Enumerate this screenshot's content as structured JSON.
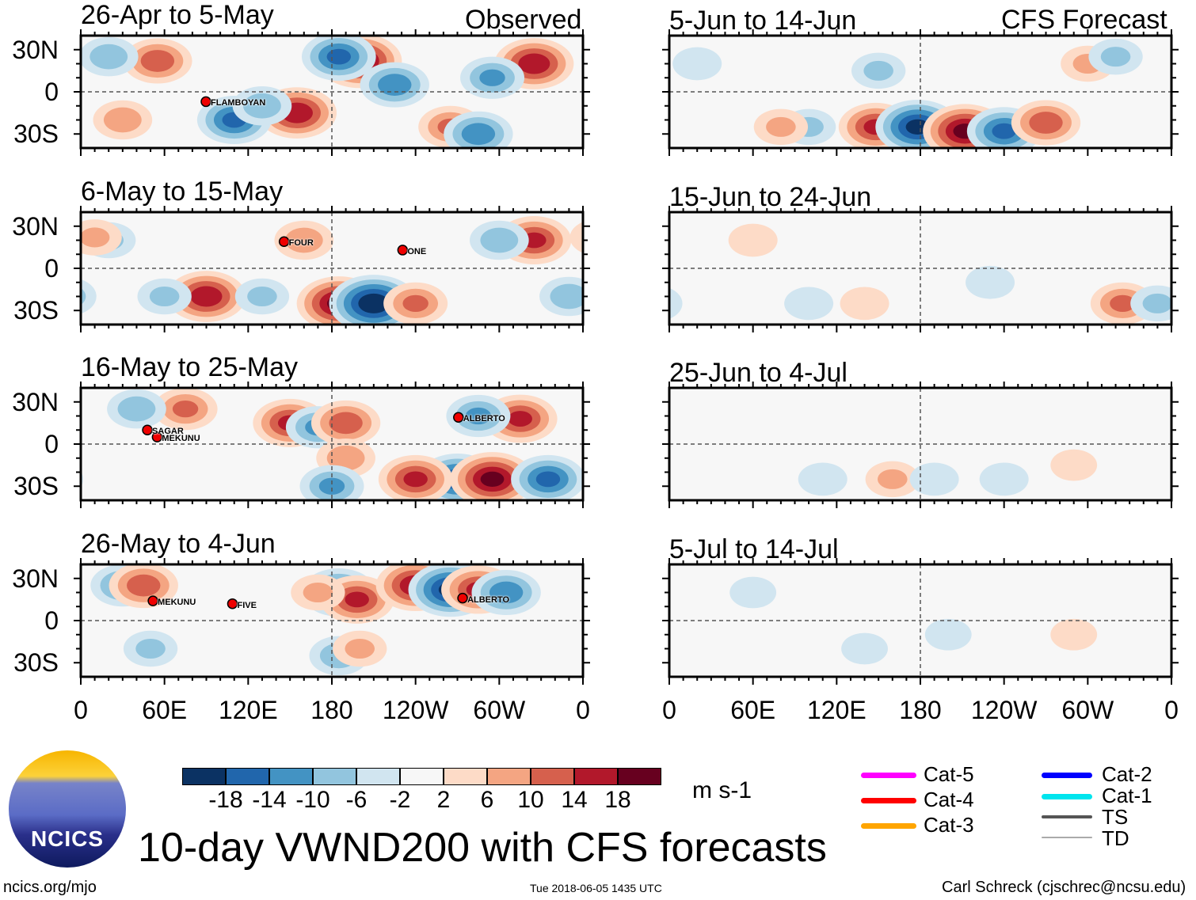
{
  "header": {
    "left_label": "Observed",
    "right_label": "CFS Forecast"
  },
  "title": "10-day VWND200 with CFS forecasts",
  "footer": {
    "left": "ncics.org/mjo",
    "center": "Tue 2018-06-05 1435 UTC",
    "right": "Carl Schreck (cjschrec@ncsu.edu)"
  },
  "logo_text": "NCICS",
  "chart_data": {
    "type": "heatmap",
    "variable": "VWND200 anomaly",
    "units": "m s-1",
    "xlim": [
      0,
      360
    ],
    "ylim": [
      -40,
      40
    ],
    "x_ticks": [
      "0",
      "60E",
      "120E",
      "180",
      "120W",
      "60W",
      "0"
    ],
    "y_ticks": [
      "30N",
      "0",
      "30S"
    ],
    "colorbar": {
      "labels": [
        "-18",
        "-14",
        "-10",
        "-6",
        "-2",
        "2",
        "6",
        "10",
        "14",
        "18"
      ],
      "colors": [
        "#0b3263",
        "#2166ac",
        "#4393c3",
        "#92c5de",
        "#d1e5f0",
        "#f7f7f7",
        "#fddbc7",
        "#f4a582",
        "#d6604d",
        "#b2182b",
        "#67001f"
      ]
    },
    "legend": [
      {
        "label": "Cat-5",
        "color": "#ff00ff"
      },
      {
        "label": "Cat-4",
        "color": "#ff0000"
      },
      {
        "label": "Cat-3",
        "color": "#ffa500"
      },
      {
        "label": "Cat-2",
        "color": "#0000ff"
      },
      {
        "label": "Cat-1",
        "color": "#00e5ee"
      },
      {
        "label": "TS",
        "color": "#555555"
      },
      {
        "label": "TD",
        "color": "#aaaaaa"
      }
    ],
    "panels": [
      {
        "title": "26-Apr to 5-May",
        "col": 0,
        "row": 0,
        "storms": [
          {
            "name": "FLAMBOYAN",
            "lon": 92,
            "lat": -7
          }
        ],
        "centers": [
          [
            155,
            -15,
            16
          ],
          [
            110,
            -20,
            -14
          ],
          [
            200,
            22,
            18
          ],
          [
            185,
            25,
            -14
          ],
          [
            225,
            5,
            -12
          ],
          [
            325,
            20,
            16
          ],
          [
            295,
            10,
            -10
          ],
          [
            55,
            22,
            12
          ],
          [
            20,
            25,
            -8
          ],
          [
            265,
            -25,
            10
          ],
          [
            285,
            -30,
            -12
          ],
          [
            30,
            -20,
            8
          ],
          [
            130,
            -10,
            -8
          ]
        ]
      },
      {
        "title": "6-May to 15-May",
        "col": 0,
        "row": 1,
        "storms": [
          {
            "name": "FOUR",
            "lon": 148,
            "lat": 19
          },
          {
            "name": "ONE",
            "lon": 233,
            "lat": 13
          }
        ],
        "centers": [
          [
            90,
            -20,
            16
          ],
          [
            185,
            -25,
            18
          ],
          [
            210,
            -25,
            -20
          ],
          [
            240,
            -25,
            10
          ],
          [
            325,
            20,
            14
          ],
          [
            300,
            20,
            -8
          ],
          [
            160,
            20,
            8
          ],
          [
            20,
            20,
            -6
          ],
          [
            10,
            22,
            6
          ],
          [
            350,
            -20,
            -8
          ],
          [
            130,
            -20,
            -6
          ],
          [
            60,
            -20,
            -6
          ]
        ]
      },
      {
        "title": "16-May to 25-May",
        "col": 0,
        "row": 2,
        "storms": [
          {
            "name": "SAGAR",
            "lon": 50,
            "lat": 10
          },
          {
            "name": "MEKUNU",
            "lon": 57,
            "lat": 5
          },
          {
            "name": "ALBERTO",
            "lon": 273,
            "lat": 19
          }
        ],
        "centers": [
          [
            75,
            25,
            10
          ],
          [
            150,
            15,
            14
          ],
          [
            170,
            12,
            -10
          ],
          [
            190,
            15,
            12
          ],
          [
            315,
            18,
            14
          ],
          [
            285,
            20,
            -10
          ],
          [
            270,
            -25,
            -16
          ],
          [
            240,
            -25,
            14
          ],
          [
            295,
            -25,
            18
          ],
          [
            335,
            -25,
            -14
          ],
          [
            190,
            -10,
            8
          ],
          [
            180,
            -30,
            -10
          ],
          [
            40,
            25,
            -8
          ]
        ]
      },
      {
        "title": "26-May to 4-Jun",
        "col": 0,
        "row": 3,
        "storms": [
          {
            "name": "MEKUNU",
            "lon": 54,
            "lat": 14
          },
          {
            "name": "FIVE",
            "lon": 111,
            "lat": 12
          },
          {
            "name": "ALBERTO",
            "lon": 276,
            "lat": 16
          }
        ],
        "centers": [
          [
            30,
            25,
            -10
          ],
          [
            45,
            25,
            12
          ],
          [
            185,
            20,
            -14
          ],
          [
            198,
            15,
            14
          ],
          [
            240,
            25,
            16
          ],
          [
            265,
            22,
            -18
          ],
          [
            285,
            22,
            14
          ],
          [
            305,
            20,
            -12
          ],
          [
            170,
            20,
            6
          ],
          [
            185,
            -25,
            -8
          ],
          [
            200,
            -20,
            6
          ],
          [
            50,
            -20,
            -6
          ]
        ]
      },
      {
        "title": "5-Jun to 14-Jun",
        "col": 1,
        "row": 0,
        "storms": [],
        "centers": [
          [
            148,
            -25,
            14
          ],
          [
            178,
            -25,
            -18
          ],
          [
            212,
            -28,
            18
          ],
          [
            240,
            -28,
            -14
          ],
          [
            270,
            -22,
            12
          ],
          [
            100,
            -25,
            -6
          ],
          [
            80,
            -25,
            6
          ],
          [
            150,
            15,
            -6
          ],
          [
            300,
            20,
            6
          ],
          [
            320,
            25,
            -6
          ],
          [
            20,
            20,
            -4
          ]
        ]
      },
      {
        "title": "15-Jun to 24-Jun",
        "col": 1,
        "row": 1,
        "storms": [],
        "centers": [
          [
            325,
            -25,
            10
          ],
          [
            350,
            -25,
            -6
          ],
          [
            140,
            -25,
            4
          ],
          [
            230,
            -10,
            -4
          ],
          [
            60,
            20,
            4
          ],
          [
            100,
            -25,
            -4
          ]
        ]
      },
      {
        "title": "25-Jun to 4-Jul",
        "col": 1,
        "row": 2,
        "storms": [],
        "centers": [
          [
            160,
            -25,
            6
          ],
          [
            190,
            -25,
            -4
          ],
          [
            110,
            -25,
            -4
          ],
          [
            290,
            -15,
            3
          ],
          [
            240,
            -25,
            -4
          ]
        ]
      },
      {
        "title": "5-Jul to 14-Jul",
        "col": 1,
        "row": 3,
        "storms": [],
        "centers": [
          [
            140,
            -20,
            -3
          ],
          [
            290,
            -10,
            3
          ],
          [
            200,
            -10,
            -3
          ],
          [
            60,
            20,
            -3
          ]
        ]
      }
    ]
  }
}
